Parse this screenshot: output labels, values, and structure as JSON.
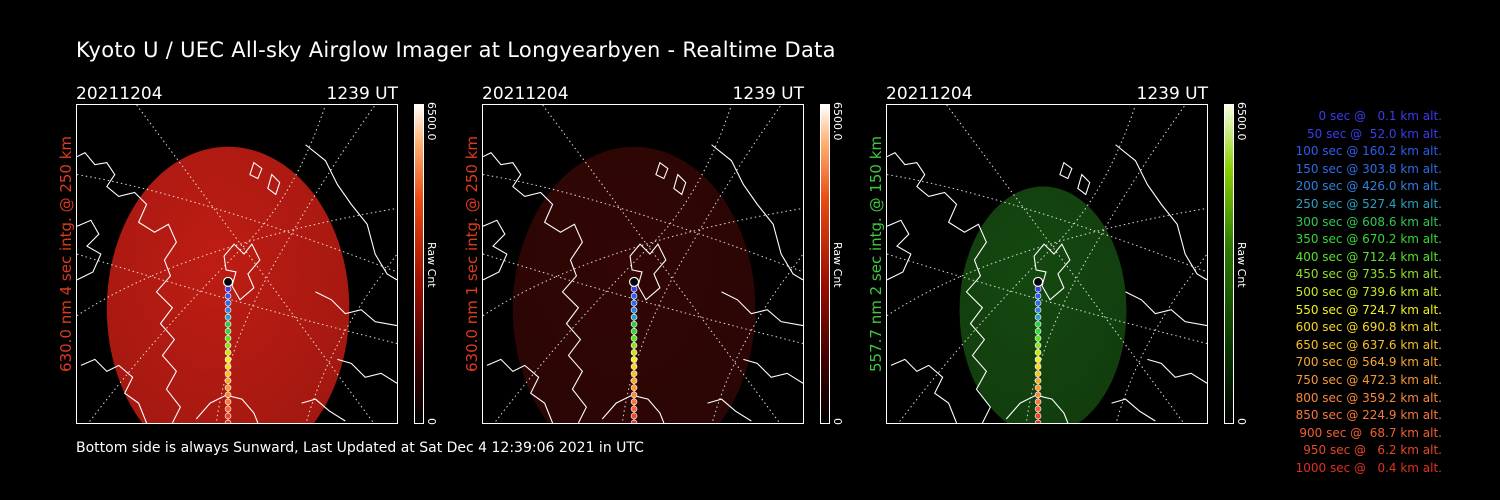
{
  "header": {
    "title": "Kyoto U / UEC All-sky Airglow Imager at Longyearbyen - Realtime Data"
  },
  "footer": {
    "text": "Bottom side is always Sunward, Last Updated at Sat Dec  4 12:39:06 2021 in UTC"
  },
  "panels": [
    {
      "date": "20211204",
      "time": "1239 UT",
      "ylabel": "630.0 nm  4 sec intg. @ 250 km",
      "label_color": "#e03a1e",
      "cbar_max": "6500.0",
      "cbar_min": "0",
      "cbar_unit": "Raw Cnt",
      "cmap": "red"
    },
    {
      "date": "20211204",
      "time": "1239 UT",
      "ylabel": "630.0 nm  1 sec intg. @ 250 km",
      "label_color": "#e03a1e",
      "cbar_max": "6500.0",
      "cbar_min": "0",
      "cbar_unit": "Raw Cnt",
      "cmap": "red"
    },
    {
      "date": "20211204",
      "time": "1239 UT",
      "ylabel": "557.7 nm  2 sec intg. @ 150 km",
      "label_color": "#3fc83f",
      "cbar_max": "6500.0",
      "cbar_min": "0",
      "cbar_unit": "Raw Cnt",
      "cmap": "green"
    }
  ],
  "legend": [
    {
      "text": "0 sec @   0.1 km alt.",
      "color": "#3c3cf0"
    },
    {
      "text": "50 sec @  52.0 km alt.",
      "color": "#3c3cf0"
    },
    {
      "text": "100 sec @ 160.2 km alt.",
      "color": "#2f5cf0"
    },
    {
      "text": "150 sec @ 303.8 km alt.",
      "color": "#2f6ce8"
    },
    {
      "text": "200 sec @ 426.0 km alt.",
      "color": "#2f80e0"
    },
    {
      "text": "250 sec @ 527.4 km alt.",
      "color": "#2aa0c0"
    },
    {
      "text": "300 sec @ 608.6 km alt.",
      "color": "#30c850"
    },
    {
      "text": "350 sec @ 670.2 km alt.",
      "color": "#34d834"
    },
    {
      "text": "400 sec @ 712.4 km alt.",
      "color": "#5ae02a"
    },
    {
      "text": "450 sec @ 735.5 km alt.",
      "color": "#90e020"
    },
    {
      "text": "500 sec @ 739.6 km alt.",
      "color": "#c8e818"
    },
    {
      "text": "550 sec @ 724.7 km alt.",
      "color": "#f0f018"
    },
    {
      "text": "600 sec @ 690.8 km alt.",
      "color": "#f8d820"
    },
    {
      "text": "650 sec @ 637.6 km alt.",
      "color": "#f8c020"
    },
    {
      "text": "700 sec @ 564.9 km alt.",
      "color": "#f8a828"
    },
    {
      "text": "750 sec @ 472.3 km alt.",
      "color": "#f89830"
    },
    {
      "text": "800 sec @ 359.2 km alt.",
      "color": "#f88838"
    },
    {
      "text": "850 sec @ 224.9 km alt.",
      "color": "#f87838"
    },
    {
      "text": "900 sec @  68.7 km alt.",
      "color": "#f06030"
    },
    {
      "text": "950 sec @   6.2 km alt.",
      "color": "#e84828"
    },
    {
      "text": "1000 sec @   0.4 km alt.",
      "color": "#e03020"
    }
  ],
  "colors": {
    "red_map": "#c81e14",
    "green_map": "#1a5a14",
    "track_start": "#000000"
  }
}
